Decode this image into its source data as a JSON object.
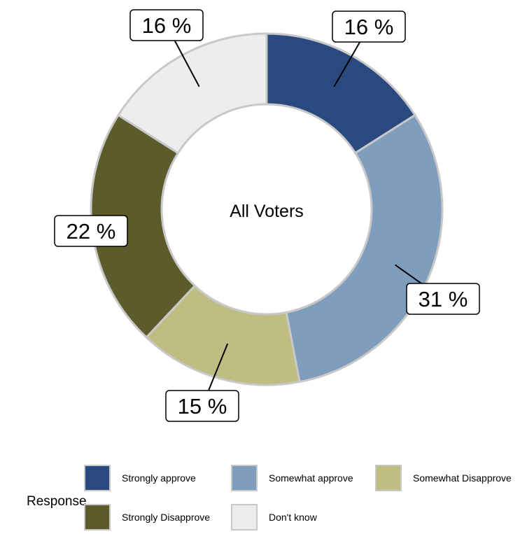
{
  "chart_data": {
    "type": "pie",
    "variant": "donut",
    "center_label": "All Voters",
    "slices": [
      {
        "label": "Strongly approve",
        "value": 16,
        "display": "16 %",
        "color": "#2a4a7f"
      },
      {
        "label": "Somewhat approve",
        "value": 31,
        "display": "31 %",
        "color": "#7f9dbd"
      },
      {
        "label": "Somewhat Disapprove",
        "value": 15,
        "display": "15 %",
        "color": "#bfbd82"
      },
      {
        "label": "Strongly Disapprove",
        "value": 22,
        "display": "22 %",
        "color": "#5c5b2c"
      },
      {
        "label": "Don't know",
        "value": 16,
        "display": "16 %",
        "color": "#eceeed"
      }
    ],
    "legend": {
      "title": "Response",
      "placement": "bottom"
    },
    "slice_border_color": "#c8c8c8"
  }
}
